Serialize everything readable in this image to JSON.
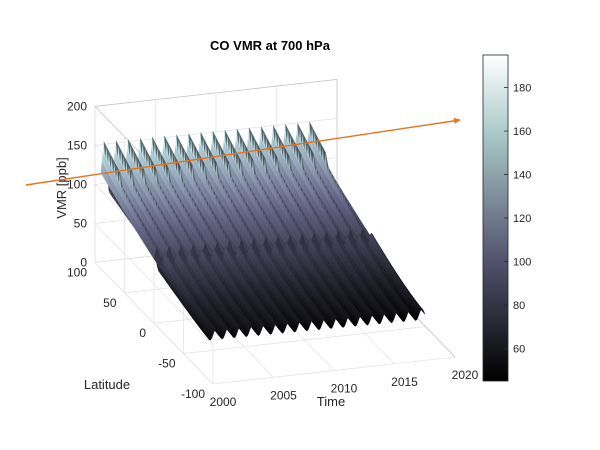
{
  "chart_data": {
    "type": "surface",
    "title": "CO VMR at  700 hPa",
    "xlabel": "Time",
    "ylabel": "Latitude",
    "zlabel": "VMR [ppb]",
    "x_ticks": [
      "2000",
      "2005",
      "2010",
      "2015",
      "2020"
    ],
    "y_ticks": [
      "100",
      "50",
      "0",
      "-50",
      "-100"
    ],
    "z_ticks": [
      "200",
      "150",
      "100",
      "50",
      "0"
    ],
    "xlim": [
      2000,
      2020
    ],
    "ylim": [
      -100,
      100
    ],
    "zlim": [
      0,
      200
    ],
    "data_time_range": [
      2000,
      2018
    ],
    "data_latitude_range": [
      -90,
      90
    ],
    "seasonal_cycles_per_year": 1,
    "approx_vmr_north_peak": 150,
    "approx_vmr_north_trough": 95,
    "approx_vmr_south": 55,
    "colorbar": {
      "ticks": [
        "180",
        "160",
        "140",
        "120",
        "100",
        "80",
        "60"
      ],
      "range": [
        45,
        195
      ],
      "colormap": "bone"
    },
    "annotation": {
      "type": "arrow",
      "color": "#e8731c"
    }
  }
}
